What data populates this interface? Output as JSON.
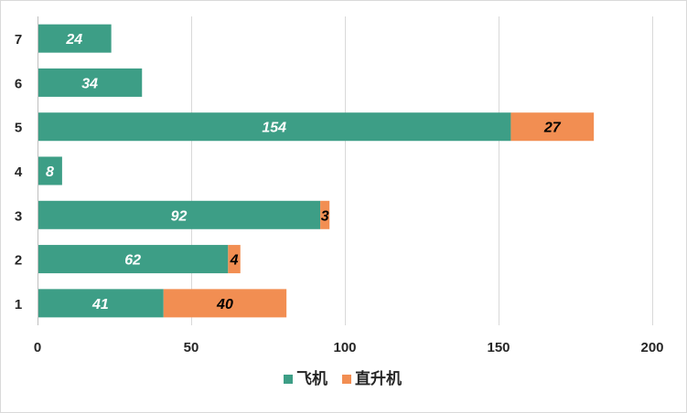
{
  "chart_data": {
    "type": "bar",
    "orientation": "horizontal",
    "stacked": true,
    "categories": [
      "1",
      "2",
      "3",
      "4",
      "5",
      "6",
      "7"
    ],
    "series": [
      {
        "name": "飞机",
        "values": [
          41,
          62,
          92,
          8,
          154,
          34,
          24
        ],
        "color": "#3d9e86",
        "label_color": "#ffffff"
      },
      {
        "name": "直升机",
        "values": [
          40,
          4,
          3,
          0,
          27,
          0,
          0
        ],
        "color": "#f28e52",
        "label_color": "#000000"
      }
    ],
    "xlim": [
      0,
      200
    ],
    "xticks": [
      0,
      50,
      100,
      150,
      200
    ],
    "grid": true,
    "legend_position": "bottom",
    "title": "",
    "xlabel": "",
    "ylabel": ""
  }
}
